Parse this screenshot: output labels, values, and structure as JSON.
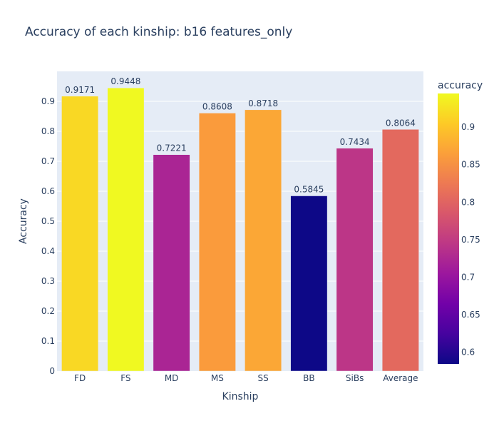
{
  "chart_data": {
    "type": "bar",
    "title": "Accuracy of each kinship: b16 features_only",
    "xlabel": "Kinship",
    "ylabel": "Accuracy",
    "categories": [
      "FD",
      "FS",
      "MD",
      "MS",
      "SS",
      "BB",
      "SiBs",
      "Average"
    ],
    "values": [
      0.9171,
      0.9448,
      0.7221,
      0.8608,
      0.8718,
      0.5845,
      0.7434,
      0.8064
    ],
    "data_labels": [
      "0.9171",
      "0.9448",
      "0.7221",
      "0.8608",
      "0.8718",
      "0.5845",
      "0.7434",
      "0.8064"
    ],
    "ylim": [
      0,
      0.9448
    ],
    "yticks": [
      0,
      0.1,
      0.2,
      0.3,
      0.4,
      0.5,
      0.6,
      0.7,
      0.8,
      0.9
    ],
    "ytick_labels": [
      "0",
      "0.1",
      "0.2",
      "0.3",
      "0.4",
      "0.5",
      "0.6",
      "0.7",
      "0.8",
      "0.9"
    ],
    "grid": true,
    "plot_background": "#e5ecf6",
    "colorscale": {
      "name": "Plasma",
      "title": "accuracy",
      "range": [
        0.5845,
        0.9448
      ],
      "ticks": [
        0.6,
        0.65,
        0.7,
        0.75,
        0.8,
        0.85,
        0.9
      ],
      "tick_labels": [
        "0.6",
        "0.65",
        "0.7",
        "0.75",
        "0.8",
        "0.85",
        "0.9"
      ],
      "colors": [
        "#0d0887",
        "#46039f",
        "#7201a8",
        "#9c179e",
        "#bd3786",
        "#d8576b",
        "#ed7953",
        "#fb9f3a",
        "#fdca26",
        "#f0f921"
      ]
    }
  }
}
